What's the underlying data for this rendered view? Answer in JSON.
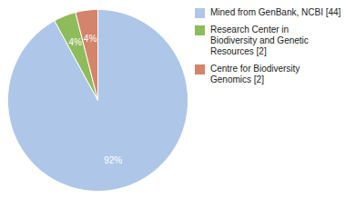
{
  "chart_data": {
    "type": "pie",
    "categories": [
      "Mined from GenBank, NCBI [44]",
      "Research Center in\nBiodiversity and Genetic\nResources [2]",
      "Centre for Biodiversity\nGenomics [2]"
    ],
    "values": [
      92,
      4,
      4
    ],
    "value_labels": [
      "92%",
      "4%",
      "4%"
    ],
    "colors": [
      "#aec6e8",
      "#8fbc5a",
      "#d4846a"
    ],
    "data_labels": true,
    "legend": "upper right"
  }
}
